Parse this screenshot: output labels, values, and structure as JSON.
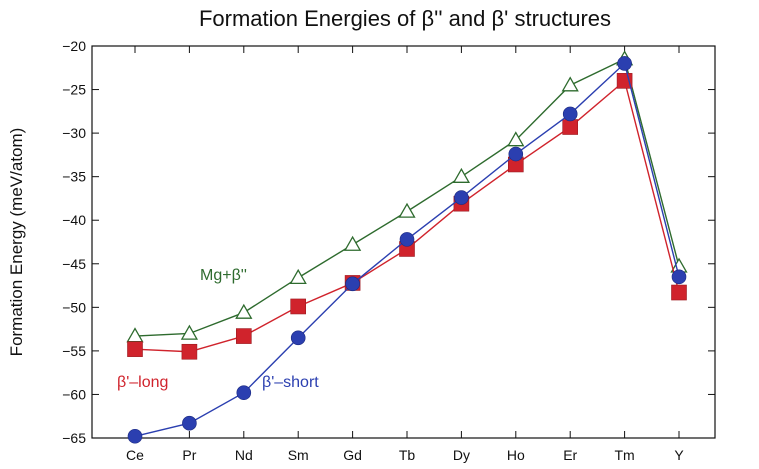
{
  "chart_data": {
    "type": "line",
    "title": "Formation Energies of β'' and β' structures",
    "xlabel": "",
    "ylabel": "Formation Energy (meV/atom)",
    "categories": [
      "Ce",
      "Pr",
      "Nd",
      "Sm",
      "Gd",
      "Tb",
      "Dy",
      "Ho",
      "Er",
      "Tm",
      "Y"
    ],
    "ylim": [
      -65,
      -20
    ],
    "yticks": [
      -20,
      -25,
      -30,
      -35,
      -40,
      -45,
      -50,
      -55,
      -60,
      -65
    ],
    "grid": false,
    "legend": "none",
    "series": [
      {
        "name": "Mg+β''",
        "color": "#2e6b2e",
        "marker": "triangle-open",
        "values": [
          -53.3,
          -53.0,
          -50.6,
          -46.6,
          -42.8,
          -39.0,
          -35.0,
          -30.8,
          -24.5,
          -21.5,
          -45.3
        ]
      },
      {
        "name": "β'–long",
        "color": "#d0232c",
        "marker": "square",
        "values": [
          -54.8,
          -55.1,
          -53.3,
          -49.9,
          -47.2,
          -43.3,
          -38.1,
          -33.6,
          -29.3,
          -24.0,
          -48.3
        ]
      },
      {
        "name": "β'–short",
        "color": "#2b3fb0",
        "marker": "circle",
        "values": [
          -64.8,
          -63.3,
          -59.8,
          -53.5,
          -47.3,
          -42.2,
          -37.4,
          -32.4,
          -27.8,
          -22.0,
          -46.5
        ]
      }
    ]
  }
}
